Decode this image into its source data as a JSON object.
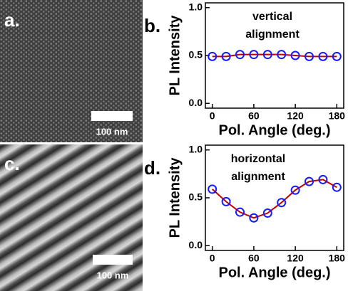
{
  "panels": {
    "a": {
      "label": "a.",
      "scale_bar": "100 nm"
    },
    "c": {
      "label": "c.",
      "scale_bar": "100 nm"
    }
  },
  "chart_data": [
    {
      "type": "line",
      "panel_label": "b.",
      "annotation": [
        "vertical",
        "alignment"
      ],
      "x_label": "Pol. Angle (deg.)",
      "y_label": "PL Intensity",
      "x": [
        0,
        20,
        40,
        60,
        80,
        100,
        120,
        140,
        160,
        180
      ],
      "series": [
        {
          "line_color": "#c00000",
          "marker_color": "#1a1aff",
          "values": [
            0.49,
            0.49,
            0.51,
            0.51,
            0.51,
            0.51,
            0.5,
            0.49,
            0.49,
            0.49
          ]
        }
      ],
      "xlim": [
        -10,
        190
      ],
      "xticks": [
        0,
        60,
        120,
        180
      ],
      "ylim": [
        -0.05,
        1.05
      ],
      "yticks": [
        {
          "value": 0,
          "label": "0.0"
        },
        {
          "value": 0.5,
          "label": "0.5"
        },
        {
          "value": 1,
          "label": "1.0"
        }
      ]
    },
    {
      "type": "line",
      "panel_label": "d.",
      "annotation": [
        "horizontal",
        "alignment"
      ],
      "x_label": "Pol. Angle (deg.)",
      "y_label": "PL Intensity",
      "x": [
        0,
        20,
        40,
        60,
        80,
        100,
        120,
        140,
        160,
        180
      ],
      "series": [
        {
          "line_color": "#c00000",
          "marker_color": "#1a1aff",
          "values": [
            0.59,
            0.46,
            0.35,
            0.29,
            0.34,
            0.45,
            0.58,
            0.67,
            0.69,
            0.61
          ]
        }
      ],
      "xlim": [
        -10,
        190
      ],
      "xticks": [
        0,
        60,
        120,
        180
      ],
      "ylim": [
        -0.05,
        1.05
      ],
      "yticks": [
        {
          "value": 0,
          "label": "0.0"
        },
        {
          "value": 0.5,
          "label": "0.5"
        },
        {
          "value": 1,
          "label": "1.0"
        }
      ]
    }
  ]
}
